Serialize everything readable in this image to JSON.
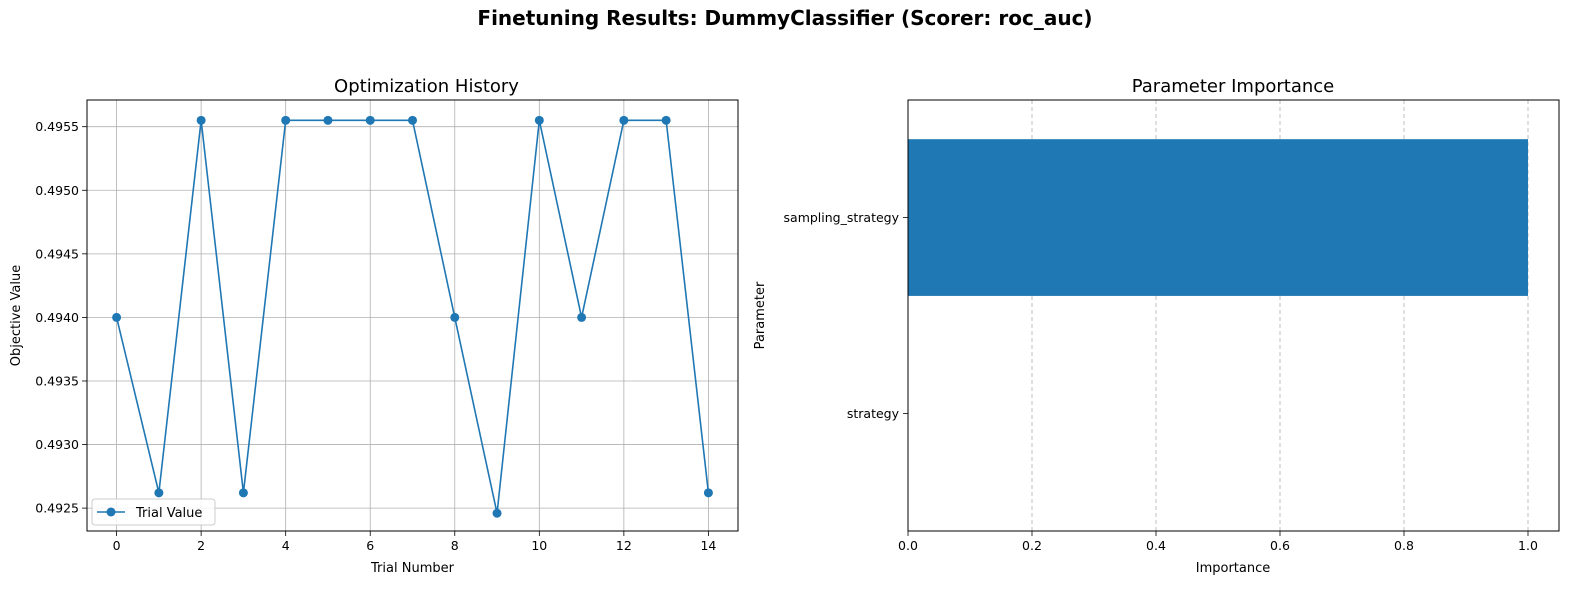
{
  "figure": {
    "suptitle": "Finetuning Results: DummyClassifier (Scorer: roc_auc)"
  },
  "chart_data": [
    {
      "type": "line",
      "title": "Optimization History",
      "xlabel": "Trial Number",
      "ylabel": "Objective Value",
      "x": [
        0,
        1,
        2,
        3,
        4,
        5,
        6,
        7,
        8,
        9,
        10,
        11,
        12,
        13,
        14
      ],
      "series": [
        {
          "name": "Trial Value",
          "values": [
            0.494,
            0.49262,
            0.49555,
            0.49262,
            0.49555,
            0.49555,
            0.49555,
            0.49555,
            0.494,
            0.49246,
            0.49555,
            0.494,
            0.49555,
            0.49555,
            0.49262
          ],
          "color": "#1f77b4",
          "marker": "circle"
        }
      ],
      "xlim": [
        -0.7,
        14.7
      ],
      "ylim": [
        0.49232,
        0.49571
      ],
      "xticks": [
        0,
        2,
        4,
        6,
        8,
        10,
        12,
        14
      ],
      "xtick_labels": [
        "0",
        "2",
        "4",
        "6",
        "8",
        "10",
        "12",
        "14"
      ],
      "yticks": [
        0.4925,
        0.493,
        0.4935,
        0.494,
        0.4945,
        0.495,
        0.4955
      ],
      "ytick_labels": [
        "0.4925",
        "0.4930",
        "0.4935",
        "0.4940",
        "0.4945",
        "0.4950",
        "0.4955"
      ],
      "grid": "both",
      "legend_position": "lower-left"
    },
    {
      "type": "bar",
      "orientation": "horizontal",
      "title": "Parameter Importance",
      "xlabel": "Importance",
      "ylabel": "Parameter",
      "categories": [
        "sampling_strategy",
        "strategy"
      ],
      "values": [
        1.0,
        0.0
      ],
      "color": "#1f77b4",
      "xlim": [
        0,
        1.05
      ],
      "xticks": [
        0.0,
        0.2,
        0.4,
        0.6,
        0.8,
        1.0
      ],
      "xtick_labels": [
        "0.0",
        "0.2",
        "0.4",
        "0.6",
        "0.8",
        "1.0"
      ],
      "grid": "x-dashed"
    }
  ]
}
